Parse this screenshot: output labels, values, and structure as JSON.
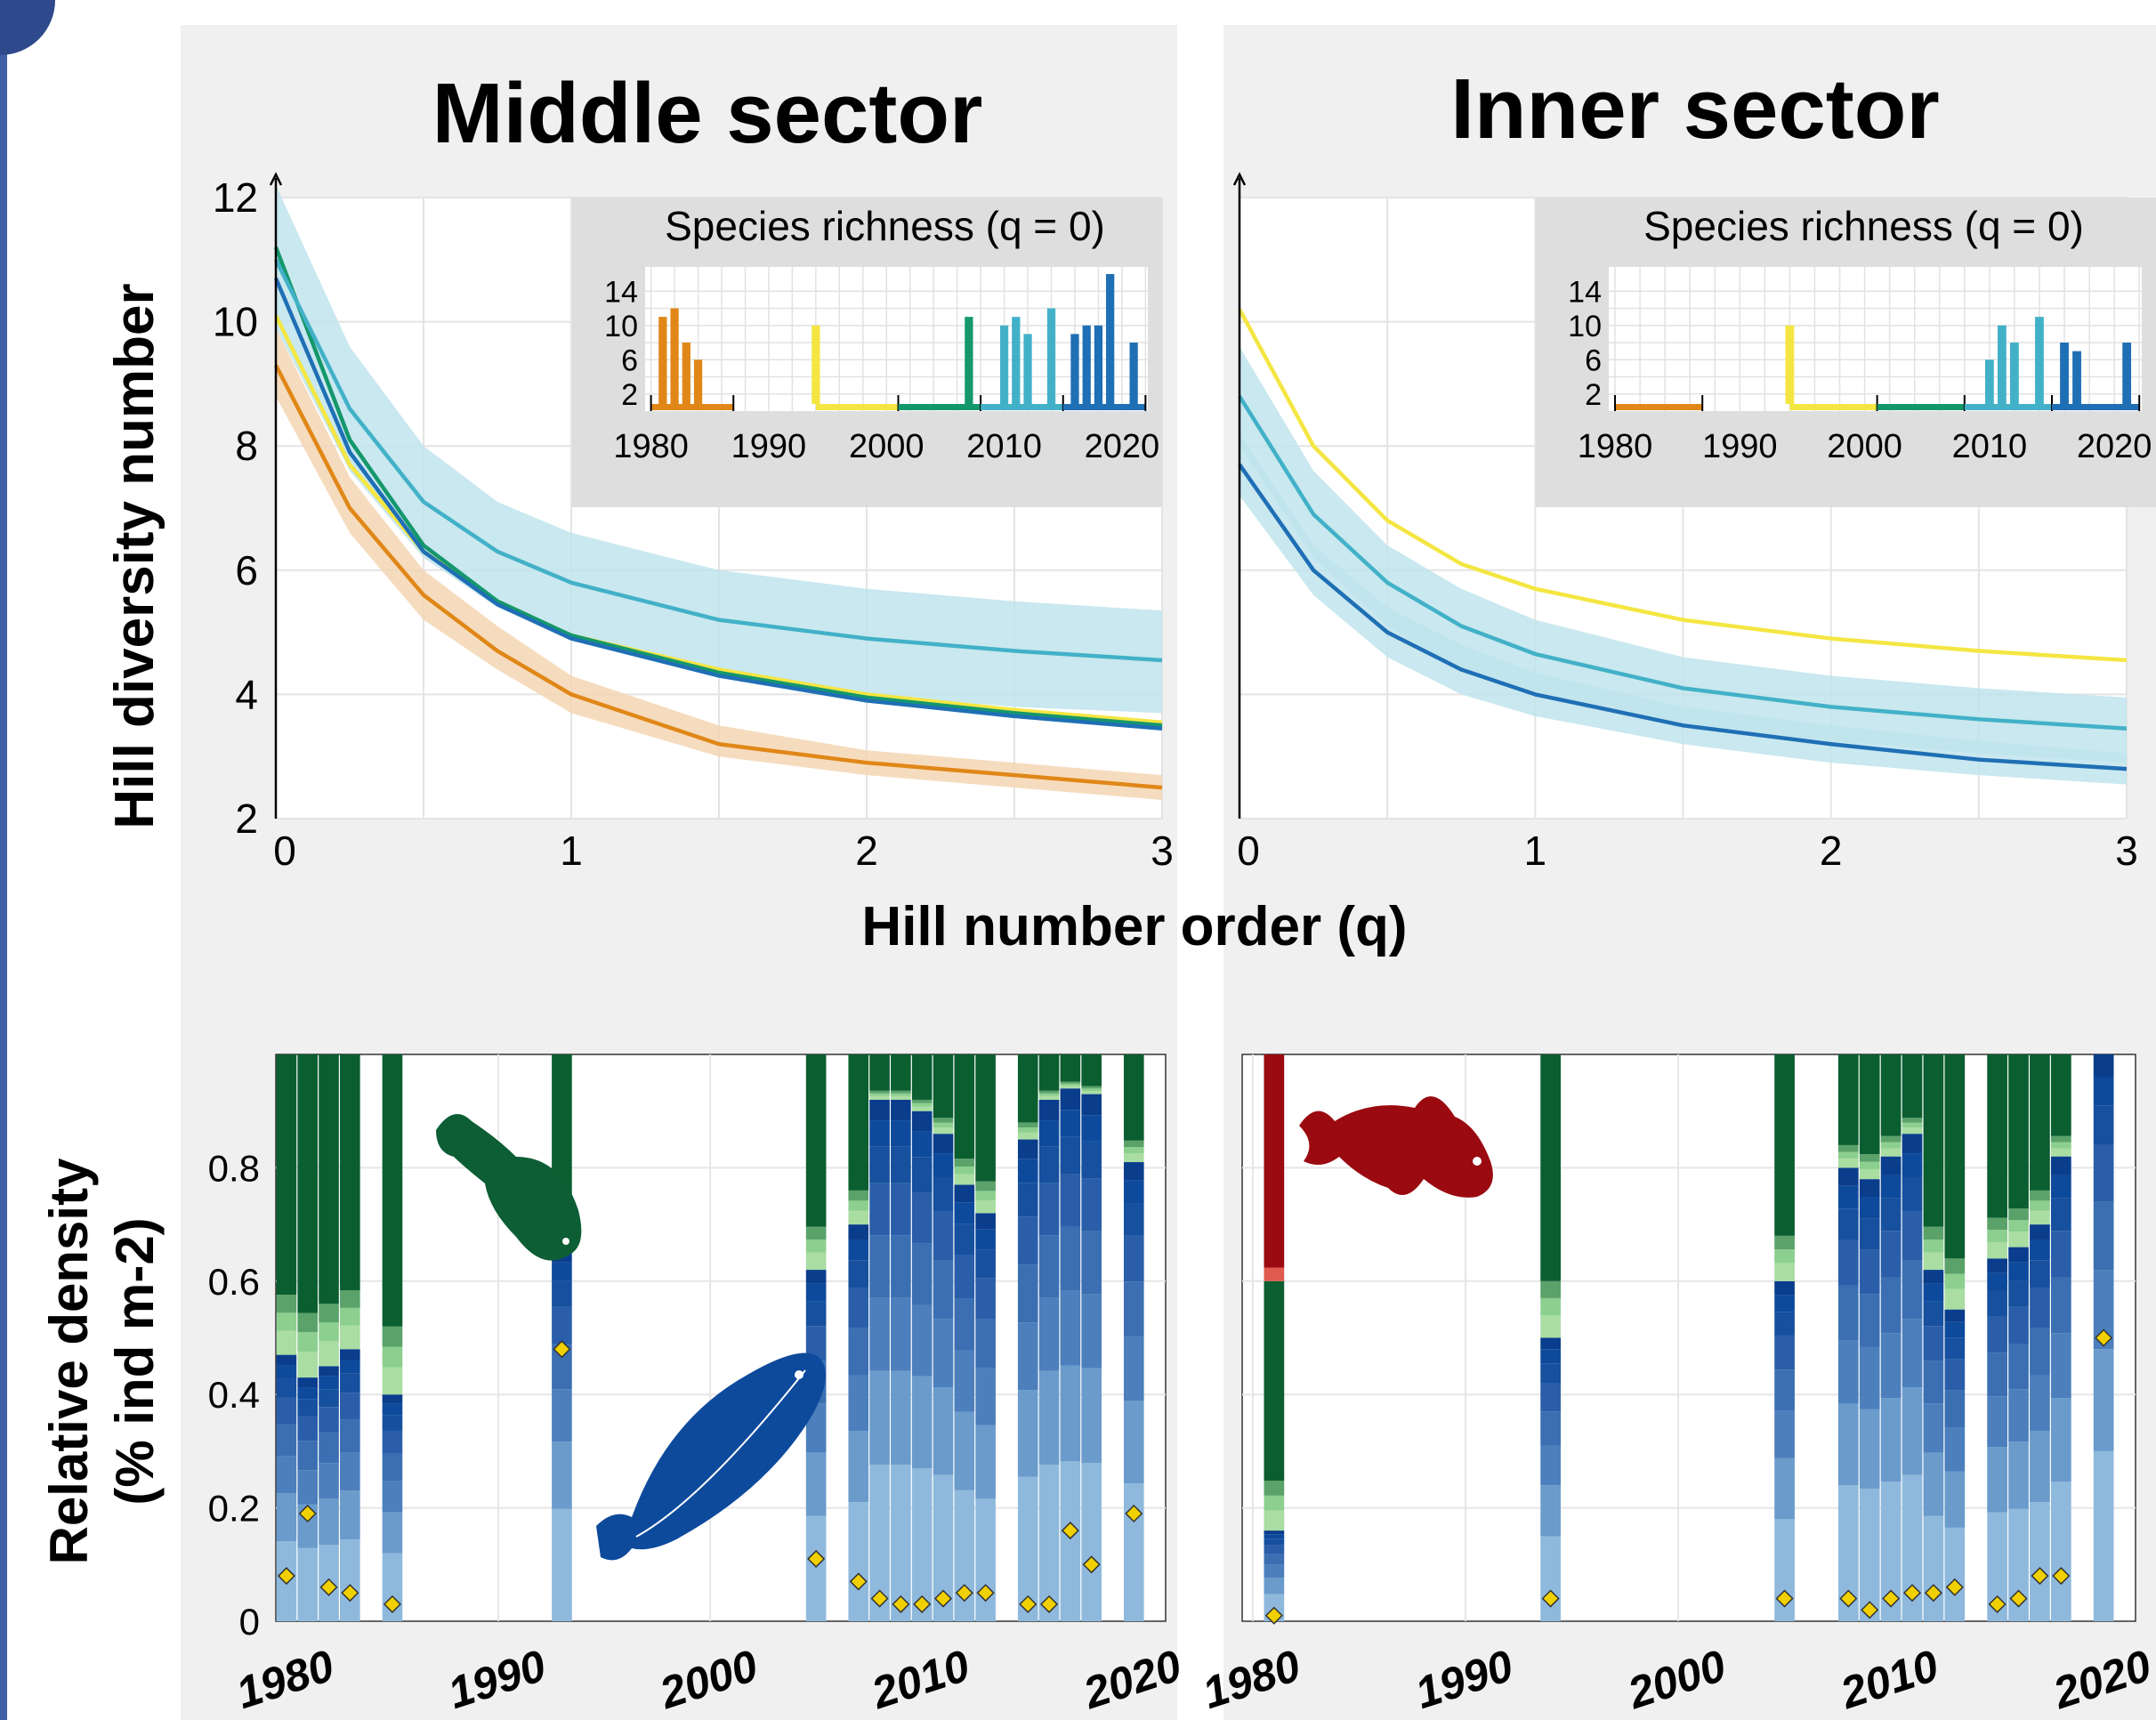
{
  "colors": {
    "p1980": "#e08718",
    "p1990": "#f4e642",
    "p2000": "#14976b",
    "p2010": "#42b1c8",
    "p2020": "#1f6fb5",
    "ci_orange": "#f5d6b3",
    "ci_blue": "#bfe4ec",
    "stack_blues": [
      "#0a3d8c",
      "#0d4a9c",
      "#16509e",
      "#2a5ea9",
      "#3b6fb2",
      "#4c7fbc",
      "#6a9bcb",
      "#8fb9dc"
    ],
    "stack_greens": [
      "#0b5e30",
      "#5aa26a",
      "#8ccf8e",
      "#a9dda2"
    ],
    "stack_reds": [
      "#9a0a10",
      "#e05a4f"
    ],
    "panel_bg": "#f0f0f0",
    "marker": "#f0d000"
  },
  "panels": {
    "middle_title": "Middle sector",
    "inner_title": "Inner sector",
    "ylabel_top": "Hill diversity number",
    "xlabel_top": "Hill number order (q)",
    "ylabel_bottom_line1": "Relative density",
    "ylabel_bottom_line2": "(% ind m-2)"
  },
  "chart_data": [
    {
      "type": "line",
      "panel": "Middle sector",
      "xlabel": "Hill number order (q)",
      "ylabel": "Hill diversity number",
      "xlim": [
        0,
        3
      ],
      "ylim": [
        2,
        12
      ],
      "x_ticks": [
        "0",
        "1",
        "2",
        "3"
      ],
      "y_ticks": [
        "2",
        "4",
        "6",
        "8",
        "10",
        "12"
      ],
      "x": [
        0,
        0.25,
        0.5,
        0.75,
        1,
        1.5,
        2,
        2.5,
        3
      ],
      "series": [
        {
          "color_key": "p1980",
          "values": [
            9.3,
            7.0,
            5.6,
            4.7,
            4.0,
            3.2,
            2.9,
            2.7,
            2.5
          ],
          "ci": [
            [
              8.8,
              6.6,
              5.2,
              4.4,
              3.7,
              3.0,
              2.7,
              2.5,
              2.3
            ],
            [
              9.9,
              7.5,
              6.0,
              5.1,
              4.3,
              3.5,
              3.1,
              2.9,
              2.7
            ]
          ]
        },
        {
          "color_key": "p1990",
          "values": [
            10.1,
            7.7,
            6.3,
            5.5,
            4.95,
            4.4,
            4.0,
            3.75,
            3.55
          ]
        },
        {
          "color_key": "p2000",
          "values": [
            11.2,
            8.1,
            6.4,
            5.5,
            4.95,
            4.35,
            3.95,
            3.7,
            3.5
          ]
        },
        {
          "color_key": "p2010",
          "values": [
            11.0,
            8.6,
            7.1,
            6.3,
            5.8,
            5.2,
            4.9,
            4.7,
            4.55
          ],
          "ci": [
            [
              9.9,
              7.6,
              6.2,
              5.4,
              4.9,
              4.3,
              4.0,
              3.8,
              3.7
            ],
            [
              12.2,
              9.6,
              8.0,
              7.1,
              6.6,
              6.0,
              5.7,
              5.5,
              5.35
            ]
          ]
        },
        {
          "color_key": "p2020",
          "values": [
            10.7,
            7.9,
            6.3,
            5.45,
            4.9,
            4.3,
            3.9,
            3.65,
            3.45
          ]
        }
      ],
      "inset": {
        "title": "Species richness (q = 0)",
        "y_ticks": [
          "2",
          "6",
          "10",
          "14"
        ],
        "x_ticks": [
          "1980",
          "1990",
          "2000",
          "2010",
          "2020"
        ],
        "ylim": [
          0,
          16
        ],
        "bars": [
          {
            "year": 1981,
            "value": 11,
            "color_key": "p1980"
          },
          {
            "year": 1982,
            "value": 12,
            "color_key": "p1980"
          },
          {
            "year": 1983,
            "value": 8,
            "color_key": "p1980"
          },
          {
            "year": 1984,
            "value": 6,
            "color_key": "p1980"
          },
          {
            "year": 1994,
            "value": 10,
            "color_key": "p1990"
          },
          {
            "year": 2007,
            "value": 11,
            "color_key": "p2000"
          },
          {
            "year": 2010,
            "value": 10,
            "color_key": "p2010"
          },
          {
            "year": 2011,
            "value": 11,
            "color_key": "p2010"
          },
          {
            "year": 2012,
            "value": 9,
            "color_key": "p2010"
          },
          {
            "year": 2014,
            "value": 12,
            "color_key": "p2010"
          },
          {
            "year": 2016,
            "value": 9,
            "color_key": "p2020"
          },
          {
            "year": 2017,
            "value": 10,
            "color_key": "p2020"
          },
          {
            "year": 2018,
            "value": 10,
            "color_key": "p2020"
          },
          {
            "year": 2019,
            "value": 16,
            "color_key": "p2020"
          },
          {
            "year": 2021,
            "value": 8,
            "color_key": "p2020"
          }
        ],
        "periods": [
          {
            "from": 1980,
            "to": 1987,
            "color_key": "p1980"
          },
          {
            "from": 1994,
            "to": 2001,
            "color_key": "p1990"
          },
          {
            "from": 2001,
            "to": 2008,
            "color_key": "p2000"
          },
          {
            "from": 2008,
            "to": 2015,
            "color_key": "p2010"
          },
          {
            "from": 2015,
            "to": 2022,
            "color_key": "p2020"
          }
        ]
      }
    },
    {
      "type": "line",
      "panel": "Inner sector",
      "xlim": [
        0,
        3
      ],
      "ylim": [
        2,
        12
      ],
      "x_ticks": [
        "0",
        "1",
        "2",
        "3"
      ],
      "x": [
        0,
        0.25,
        0.5,
        0.75,
        1,
        1.5,
        2,
        2.5,
        3
      ],
      "series": [
        {
          "color_key": "p1990",
          "values": [
            10.2,
            8.0,
            6.8,
            6.1,
            5.7,
            5.2,
            4.9,
            4.7,
            4.55
          ]
        },
        {
          "color_key": "p2010",
          "values": [
            8.8,
            6.9,
            5.8,
            5.1,
            4.65,
            4.1,
            3.8,
            3.6,
            3.45
          ],
          "ci": [
            [
              8.0,
              6.2,
              5.1,
              4.4,
              4.0,
              3.5,
              3.25,
              3.05,
              2.9
            ],
            [
              9.6,
              7.6,
              6.4,
              5.7,
              5.2,
              4.6,
              4.3,
              4.1,
              3.95
            ]
          ]
        },
        {
          "color_key": "p2020",
          "values": [
            7.7,
            6.0,
            5.0,
            4.4,
            4.0,
            3.5,
            3.2,
            2.95,
            2.8
          ],
          "ci": [
            [
              7.2,
              5.6,
              4.6,
              4.0,
              3.65,
              3.2,
              2.9,
              2.7,
              2.55
            ],
            [
              8.2,
              6.4,
              5.4,
              4.8,
              4.35,
              3.8,
              3.5,
              3.25,
              3.05
            ]
          ]
        }
      ],
      "inset": {
        "title": "Species richness (q = 0)",
        "y_ticks": [
          "2",
          "6",
          "10",
          "14"
        ],
        "x_ticks": [
          "1980",
          "1990",
          "2000",
          "2010",
          "2020"
        ],
        "ylim": [
          0,
          16
        ],
        "bars": [
          {
            "year": 1994,
            "value": 10,
            "color_key": "p1990"
          },
          {
            "year": 2010,
            "value": 6,
            "color_key": "p2010"
          },
          {
            "year": 2011,
            "value": 10,
            "color_key": "p2010"
          },
          {
            "year": 2012,
            "value": 8,
            "color_key": "p2010"
          },
          {
            "year": 2014,
            "value": 11,
            "color_key": "p2010"
          },
          {
            "year": 2016,
            "value": 8,
            "color_key": "p2020"
          },
          {
            "year": 2017,
            "value": 7,
            "color_key": "p2020"
          },
          {
            "year": 2021,
            "value": 8,
            "color_key": "p2020"
          }
        ],
        "periods": [
          {
            "from": 1980,
            "to": 1987,
            "color_key": "p1980"
          },
          {
            "from": 1994,
            "to": 2001,
            "color_key": "p1990"
          },
          {
            "from": 2001,
            "to": 2008,
            "color_key": "p2000"
          },
          {
            "from": 2008,
            "to": 2015,
            "color_key": "p2010"
          },
          {
            "from": 2015,
            "to": 2022,
            "color_key": "p2020"
          }
        ]
      }
    },
    {
      "type": "bar",
      "stacked": true,
      "panel": "Middle sector",
      "ylabel": "Relative density (% ind m-2)",
      "ylim": [
        0,
        1
      ],
      "y_ticks": [
        "0",
        "0.2",
        "0.4",
        "0.6",
        "0.8"
      ],
      "x_ticks": [
        "1980",
        "1990",
        "2000",
        "2010",
        "2020"
      ],
      "xlim": [
        1979.5,
        2021.5
      ],
      "years": [
        1980,
        1981,
        1982,
        1983,
        1985,
        1993,
        2005,
        2007,
        2008,
        2009,
        2010,
        2011,
        2012,
        2013,
        2015,
        2016,
        2017,
        2018,
        2020
      ],
      "blue_fraction": [
        0.47,
        0.43,
        0.45,
        0.48,
        0.4,
        0.66,
        0.62,
        0.7,
        0.92,
        0.92,
        0.9,
        0.86,
        0.77,
        0.72,
        0.85,
        0.92,
        0.94,
        0.93,
        0.81
      ],
      "green_fraction": [
        0.53,
        0.57,
        0.55,
        0.52,
        0.6,
        0.34,
        0.38,
        0.3,
        0.08,
        0.08,
        0.1,
        0.14,
        0.23,
        0.28,
        0.15,
        0.08,
        0.06,
        0.07,
        0.19
      ],
      "marker_values": [
        0.08,
        0.19,
        0.06,
        0.05,
        0.03,
        0.48,
        0.11,
        0.07,
        0.04,
        0.03,
        0.03,
        0.04,
        0.05,
        0.05,
        0.03,
        0.03,
        0.16,
        0.1,
        0.19
      ]
    },
    {
      "type": "bar",
      "stacked": true,
      "panel": "Inner sector",
      "ylim": [
        0,
        1
      ],
      "x_ticks": [
        "1980",
        "1990",
        "2000",
        "2010",
        "2020"
      ],
      "xlim": [
        1979.5,
        2021.5
      ],
      "years": [
        1981,
        1994,
        2005,
        2008,
        2009,
        2010,
        2011,
        2012,
        2013,
        2015,
        2016,
        2017,
        2018,
        2020
      ],
      "blue_fraction": [
        0.16,
        0.5,
        0.6,
        0.8,
        0.78,
        0.82,
        0.86,
        0.62,
        0.55,
        0.64,
        0.66,
        0.7,
        0.82,
        1.0
      ],
      "green_fraction": [
        0.44,
        0.5,
        0.4,
        0.2,
        0.22,
        0.18,
        0.14,
        0.38,
        0.45,
        0.36,
        0.34,
        0.3,
        0.18,
        0.0
      ],
      "red_fraction": [
        0.4,
        0,
        0,
        0,
        0,
        0,
        0,
        0,
        0,
        0,
        0,
        0,
        0,
        0
      ],
      "marker_values": [
        0.01,
        0.04,
        0.04,
        0.04,
        0.02,
        0.04,
        0.05,
        0.05,
        0.06,
        0.03,
        0.04,
        0.08,
        0.08,
        0.5
      ]
    }
  ]
}
